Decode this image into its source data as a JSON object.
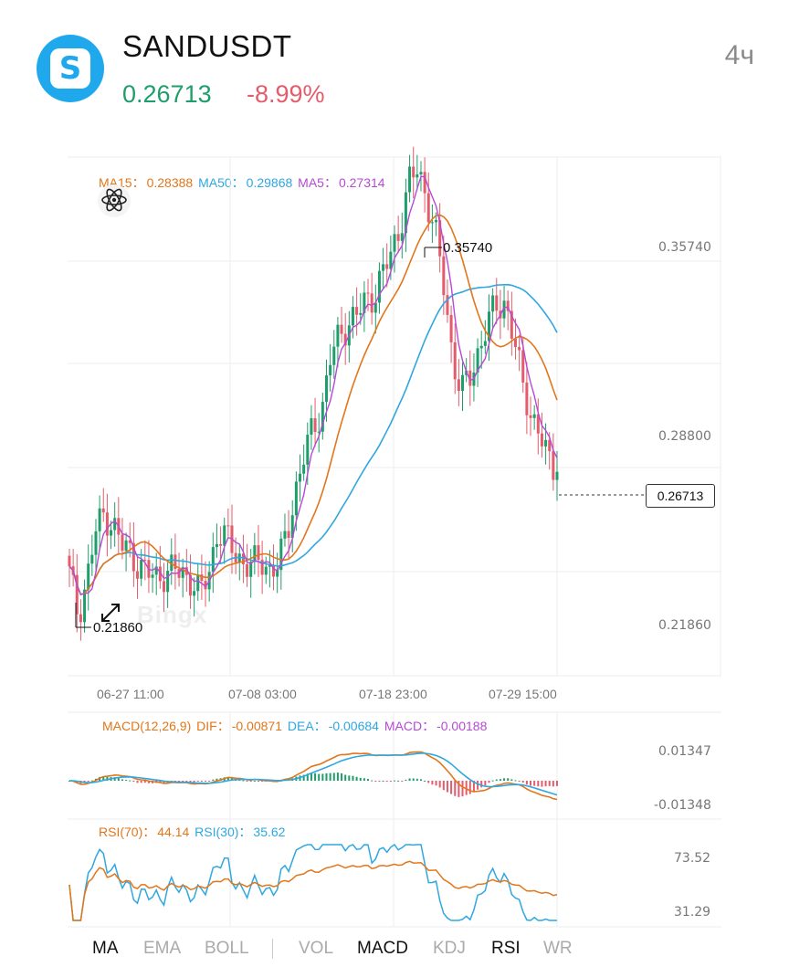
{
  "header": {
    "symbol": "SANDUSDT",
    "price": "0.26713",
    "change": "-8.99%",
    "interval": "4ч",
    "logo_letter": "S"
  },
  "colors": {
    "up": "#1e9e6a",
    "down": "#e45c6b",
    "ma15": "#e2761b",
    "ma50": "#2fa7e0",
    "ma5": "#b74ad4",
    "brand": "#1fa9ec"
  },
  "main_chart": {
    "ma_labels": [
      {
        "name": "MA15：",
        "value": "0.28388",
        "color": "#e2761b"
      },
      {
        "name": "MA50：",
        "value": "0.29868",
        "color": "#2fa7e0"
      },
      {
        "name": "MA5：",
        "value": "0.27314",
        "color": "#b74ad4"
      }
    ],
    "y_ticks": [
      "0.35740",
      "0.28800",
      "0.21860"
    ],
    "x_ticks": [
      "06-27 11:00",
      "07-08 03:00",
      "07-18 23:00",
      "07-29 15:00"
    ],
    "high_label": "0.35740",
    "low_label": "0.21860",
    "last_price": "0.26713",
    "watermark": "Bingx"
  },
  "macd": {
    "title": "MACD(12,26,9)",
    "dif_label": "DIF：",
    "dif": "-0.00871",
    "dea_label": "DEA：",
    "dea": "-0.00684",
    "macd_label": "MACD：",
    "macd": "-0.00188",
    "y_ticks": [
      "0.01347",
      "-0.01348"
    ]
  },
  "rsi": {
    "rsi70_label": "RSI(70)：",
    "rsi70": "44.14",
    "rsi30_label": "RSI(30)：",
    "rsi30": "35.62",
    "y_ticks": [
      "73.52",
      "31.29"
    ]
  },
  "tabs": {
    "main": [
      {
        "label": "MA",
        "active": true
      },
      {
        "label": "EMA",
        "active": false
      },
      {
        "label": "BOLL",
        "active": false
      }
    ],
    "sub": [
      {
        "label": "VOL",
        "active": false
      },
      {
        "label": "MACD",
        "active": true
      },
      {
        "label": "KDJ",
        "active": false
      },
      {
        "label": "RSI",
        "active": true
      },
      {
        "label": "WR",
        "active": false
      }
    ]
  },
  "chart_data": {
    "type": "candlestick",
    "x_ticks": [
      "06-27 11:00",
      "07-08 03:00",
      "07-18 23:00",
      "07-29 15:00"
    ],
    "ylim": [
      0.2086,
      0.3574
    ],
    "high": 0.3574,
    "low": 0.2186,
    "close_path": [
      0.238,
      0.226,
      0.236,
      0.25,
      0.255,
      0.252,
      0.246,
      0.244,
      0.24,
      0.238,
      0.237,
      0.238,
      0.239,
      0.238,
      0.236,
      0.232,
      0.238,
      0.25,
      0.248,
      0.244,
      0.241,
      0.24,
      0.242,
      0.239,
      0.24,
      0.25,
      0.262,
      0.272,
      0.28,
      0.285,
      0.3,
      0.306,
      0.31,
      0.312,
      0.316,
      0.318,
      0.324,
      0.33,
      0.338,
      0.35,
      0.354,
      0.346,
      0.336,
      0.32,
      0.3,
      0.29,
      0.294,
      0.302,
      0.31,
      0.314,
      0.316,
      0.306,
      0.292,
      0.284,
      0.278,
      0.27,
      0.2671
    ],
    "ma5": "0.27314",
    "ma15": "0.28388",
    "ma50": "0.29868"
  }
}
